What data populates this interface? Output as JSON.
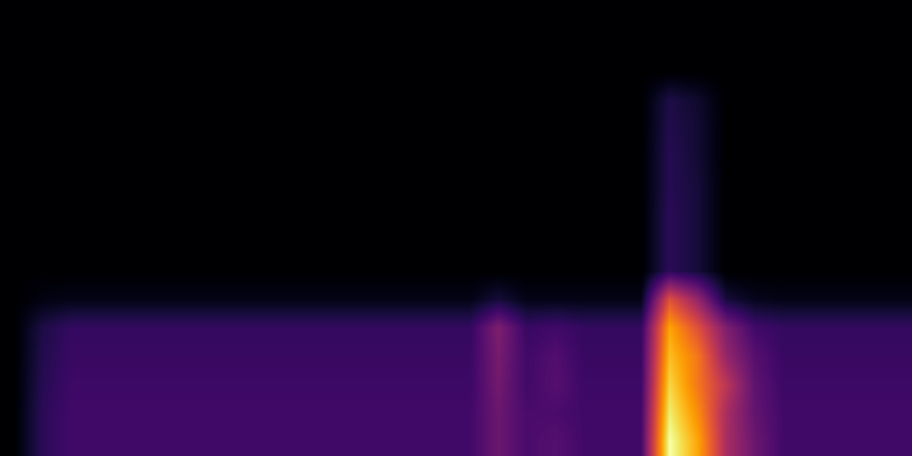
{
  "chart_data": {
    "type": "heatmap",
    "color": "inferno",
    "tick_labels": false,
    "clim": [
      0,
      1
    ],
    "cells": [
      [
        0,
        0.15,
        0.2,
        0.2,
        0.2,
        0.2,
        0.2,
        0.2,
        0.2,
        0.2,
        0.2,
        0.2,
        0.2,
        0.2,
        0.2,
        0.2,
        0.2,
        0.3,
        0.22,
        0.25,
        0.2,
        0.2,
        0.2,
        1.0,
        0.8,
        0.45,
        0.3,
        0.2,
        0.2,
        0.2,
        0.2,
        0.2
      ],
      [
        0,
        0.15,
        0.2,
        0.2,
        0.2,
        0.2,
        0.2,
        0.2,
        0.2,
        0.2,
        0.2,
        0.2,
        0.2,
        0.2,
        0.2,
        0.2,
        0.2,
        0.3,
        0.22,
        0.22,
        0.2,
        0.2,
        0.2,
        0.95,
        0.75,
        0.45,
        0.28,
        0.2,
        0.2,
        0.2,
        0.2,
        0.2
      ],
      [
        0,
        0.14,
        0.19,
        0.19,
        0.19,
        0.19,
        0.19,
        0.19,
        0.19,
        0.19,
        0.19,
        0.19,
        0.19,
        0.19,
        0.19,
        0.19,
        0.19,
        0.32,
        0.2,
        0.25,
        0.19,
        0.19,
        0.19,
        0.9,
        0.7,
        0.5,
        0.27,
        0.19,
        0.19,
        0.19,
        0.19,
        0.19
      ],
      [
        0,
        0.13,
        0.18,
        0.18,
        0.18,
        0.18,
        0.18,
        0.18,
        0.18,
        0.18,
        0.18,
        0.18,
        0.18,
        0.18,
        0.18,
        0.18,
        0.18,
        0.33,
        0.2,
        0.24,
        0.18,
        0.18,
        0.18,
        0.85,
        0.7,
        0.4,
        0.25,
        0.18,
        0.18,
        0.18,
        0.18,
        0.18
      ],
      [
        0,
        0.12,
        0.17,
        0.17,
        0.17,
        0.17,
        0.17,
        0.17,
        0.17,
        0.17,
        0.17,
        0.17,
        0.17,
        0.17,
        0.17,
        0.17,
        0.17,
        0.35,
        0.18,
        0.2,
        0.17,
        0.17,
        0.17,
        0.8,
        0.6,
        0.35,
        0.2,
        0.17,
        0.17,
        0.17,
        0.17,
        0.17
      ],
      [
        0,
        0.03,
        0.04,
        0.04,
        0.04,
        0.04,
        0.04,
        0.04,
        0.04,
        0.04,
        0.04,
        0.04,
        0.04,
        0.04,
        0.04,
        0.04,
        0.04,
        0.1,
        0.04,
        0.04,
        0.04,
        0.04,
        0.04,
        0.6,
        0.4,
        0.1,
        0.05,
        0.04,
        0.04,
        0.04,
        0.04,
        0.04
      ],
      [
        0,
        0,
        0,
        0,
        0,
        0,
        0,
        0,
        0,
        0,
        0,
        0,
        0,
        0,
        0,
        0,
        0,
        0,
        0,
        0,
        0,
        0,
        0,
        0.15,
        0.1,
        0,
        0,
        0,
        0,
        0,
        0,
        0
      ],
      [
        0,
        0,
        0,
        0,
        0,
        0,
        0,
        0,
        0,
        0,
        0,
        0,
        0,
        0,
        0,
        0,
        0,
        0,
        0,
        0,
        0,
        0,
        0,
        0.15,
        0.1,
        0,
        0,
        0,
        0,
        0,
        0,
        0
      ],
      [
        0,
        0,
        0,
        0,
        0,
        0,
        0,
        0,
        0,
        0,
        0,
        0,
        0,
        0,
        0,
        0,
        0,
        0,
        0,
        0,
        0,
        0,
        0,
        0.15,
        0.1,
        0,
        0,
        0,
        0,
        0,
        0,
        0
      ],
      [
        0,
        0,
        0,
        0,
        0,
        0,
        0,
        0,
        0,
        0,
        0,
        0,
        0,
        0,
        0,
        0,
        0,
        0,
        0,
        0,
        0,
        0,
        0,
        0.14,
        0.1,
        0,
        0,
        0,
        0,
        0,
        0,
        0
      ],
      [
        0,
        0,
        0,
        0,
        0,
        0,
        0,
        0,
        0,
        0,
        0,
        0,
        0,
        0,
        0,
        0,
        0,
        0,
        0,
        0,
        0,
        0,
        0,
        0.14,
        0.09,
        0,
        0,
        0,
        0,
        0,
        0,
        0
      ],
      [
        0,
        0,
        0,
        0,
        0,
        0,
        0,
        0,
        0,
        0,
        0,
        0,
        0,
        0,
        0,
        0,
        0,
        0,
        0,
        0,
        0,
        0,
        0,
        0.13,
        0.09,
        0,
        0,
        0,
        0,
        0,
        0,
        0
      ],
      [
        0,
        0,
        0,
        0,
        0,
        0,
        0,
        0,
        0,
        0,
        0,
        0,
        0,
        0,
        0,
        0,
        0,
        0,
        0,
        0,
        0,
        0,
        0,
        0.12,
        0.08,
        0,
        0,
        0,
        0,
        0,
        0,
        0
      ],
      [
        0,
        0,
        0,
        0,
        0,
        0,
        0,
        0,
        0,
        0,
        0,
        0,
        0,
        0,
        0,
        0,
        0,
        0,
        0,
        0,
        0,
        0,
        0,
        0,
        0,
        0,
        0,
        0,
        0,
        0,
        0,
        0
      ],
      [
        0,
        0,
        0,
        0,
        0,
        0,
        0,
        0,
        0,
        0,
        0,
        0,
        0,
        0,
        0,
        0,
        0,
        0,
        0,
        0,
        0,
        0,
        0,
        0,
        0,
        0,
        0,
        0,
        0,
        0,
        0,
        0
      ],
      [
        0,
        0,
        0,
        0,
        0,
        0,
        0,
        0,
        0,
        0,
        0,
        0,
        0,
        0,
        0,
        0,
        0,
        0,
        0,
        0,
        0,
        0,
        0,
        0,
        0,
        0,
        0,
        0,
        0,
        0,
        0,
        0
      ]
    ]
  }
}
